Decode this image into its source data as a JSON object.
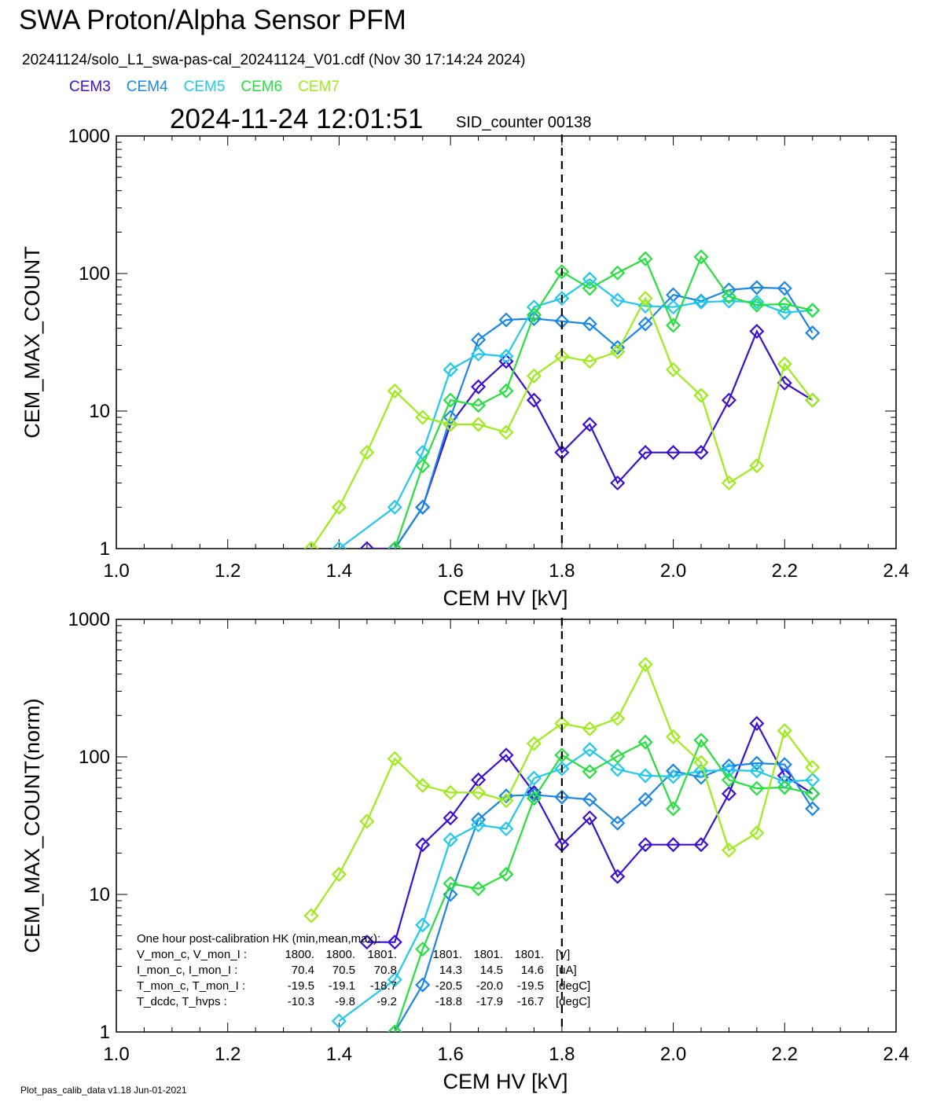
{
  "header": {
    "title": "SWA Proton/Alpha Sensor PFM",
    "subtitle": "20241124/solo_L1_swa-pas-cal_20241124_V01.cdf  (Nov 30 17:14:24 2024)",
    "datetime": "2024-11-24 12:01:51",
    "sid_counter": "SID_counter 00138"
  },
  "legend": [
    {
      "name": "CEM3",
      "color": "#3a10d4"
    },
    {
      "name": "CEM4",
      "color": "#1a86e6"
    },
    {
      "name": "CEM5",
      "color": "#20c8ee"
    },
    {
      "name": "CEM6",
      "color": "#24e03c"
    },
    {
      "name": "CEM7",
      "color": "#9cec18"
    }
  ],
  "footer": "Plot_pas_calib_data v1.18 Jun-01-2021",
  "reference_line": {
    "x": 1.8,
    "style": "dashed"
  },
  "hk_text": {
    "title": "One hour post-calibration HK (min,mean,max):",
    "lines": [
      {
        "label": "V_mon_c, V_mon_I :",
        "c": [
          "1800.",
          "1800.",
          "1801."
        ],
        "i": [
          "1801.",
          "1801.",
          "1801."
        ],
        "unit": "[V]"
      },
      {
        "label": "I_mon_c,  I_mon_I :",
        "c": [
          "70.4",
          "70.5",
          "70.8"
        ],
        "i": [
          "14.3",
          "14.5",
          "14.6"
        ],
        "unit": "[uA]"
      },
      {
        "label": "T_mon_c, T_mon_I :",
        "c": [
          "-19.5",
          "-19.1",
          "-18.7"
        ],
        "i": [
          "-20.5",
          "-20.0",
          "-19.5"
        ],
        "unit": "[degC]"
      },
      {
        "label": "T_dcdc,    T_hvps :",
        "c": [
          "-10.3",
          "-9.8",
          "-9.2"
        ],
        "i": [
          "-18.8",
          "-17.9",
          "-16.7"
        ],
        "unit": "[degC]"
      }
    ]
  },
  "chart_data": [
    {
      "type": "line",
      "xlabel": "CEM HV [kV]",
      "ylabel": "CEM_MAX_COUNT",
      "xlim": [
        1.0,
        2.4
      ],
      "ylim": [
        1,
        1000
      ],
      "yscale": "log",
      "xticks": [
        "1.0",
        "1.2",
        "1.4",
        "1.6",
        "1.8",
        "2.0",
        "2.2",
        "2.4"
      ],
      "yticks": [
        "1",
        "10",
        "100",
        "1000"
      ],
      "marker": "diamond",
      "x": [
        1.35,
        1.4,
        1.45,
        1.5,
        1.55,
        1.6,
        1.65,
        1.7,
        1.75,
        1.8,
        1.85,
        1.9,
        1.95,
        2.0,
        2.05,
        2.1,
        2.15,
        2.2,
        2.25
      ],
      "series": [
        {
          "name": "CEM3",
          "color": "#3a10d4",
          "values": [
            null,
            null,
            1,
            1,
            2,
            8,
            15,
            23,
            12,
            5,
            8,
            3,
            5,
            5,
            5,
            12,
            38,
            16,
            12
          ]
        },
        {
          "name": "CEM4",
          "color": "#1a86e6",
          "values": [
            null,
            null,
            null,
            1,
            2,
            9,
            33,
            46,
            47,
            45,
            43,
            29,
            43,
            70,
            63,
            76,
            79,
            78,
            37
          ]
        },
        {
          "name": "CEM5",
          "color": "#20c8ee",
          "values": [
            null,
            1,
            null,
            2,
            5,
            20,
            26,
            25,
            57,
            66,
            91,
            64,
            58,
            57,
            62,
            63,
            62,
            52,
            54
          ]
        },
        {
          "name": "CEM6",
          "color": "#24e03c",
          "values": [
            null,
            null,
            null,
            1,
            4,
            12,
            11,
            14,
            50,
            103,
            78,
            101,
            128,
            42,
            132,
            68,
            59,
            60,
            54
          ]
        },
        {
          "name": "CEM7",
          "color": "#9cec18",
          "values": [
            1,
            2,
            5,
            14,
            9,
            8,
            8,
            7,
            18,
            25,
            23,
            27,
            66,
            20,
            13,
            3,
            4,
            22,
            12
          ]
        }
      ]
    },
    {
      "type": "line",
      "xlabel": "CEM HV [kV]",
      "ylabel": "CEM_MAX_COUNT(norm)",
      "xlim": [
        1.0,
        2.4
      ],
      "ylim": [
        1,
        1000
      ],
      "yscale": "log",
      "xticks": [
        "1.0",
        "1.2",
        "1.4",
        "1.6",
        "1.8",
        "2.0",
        "2.2",
        "2.4"
      ],
      "yticks": [
        "1",
        "10",
        "100",
        "1000"
      ],
      "marker": "diamond",
      "x": [
        1.35,
        1.4,
        1.45,
        1.5,
        1.55,
        1.6,
        1.65,
        1.7,
        1.75,
        1.8,
        1.85,
        1.9,
        1.95,
        2.0,
        2.05,
        2.1,
        2.15,
        2.2,
        2.25
      ],
      "series": [
        {
          "name": "CEM3",
          "color": "#3a10d4",
          "values": [
            null,
            null,
            4.5,
            4.5,
            23,
            36,
            68,
            103,
            55,
            23,
            36,
            13.5,
            23,
            23,
            23,
            54,
            175,
            73,
            54
          ]
        },
        {
          "name": "CEM4",
          "color": "#1a86e6",
          "values": [
            null,
            null,
            null,
            1,
            2.2,
            10,
            35,
            52,
            53,
            51,
            49,
            33,
            49,
            79,
            71,
            86,
            90,
            88,
            42
          ]
        },
        {
          "name": "CEM5",
          "color": "#20c8ee",
          "values": [
            null,
            1.2,
            null,
            2.4,
            6,
            25,
            32,
            30,
            70,
            82,
            113,
            81,
            73,
            72,
            79,
            80,
            79,
            66,
            68
          ]
        },
        {
          "name": "CEM6",
          "color": "#24e03c",
          "values": [
            null,
            null,
            null,
            1,
            4,
            12,
            11,
            14,
            50,
            103,
            78,
            101,
            128,
            42,
            132,
            68,
            59,
            60,
            54
          ]
        },
        {
          "name": "CEM7",
          "color": "#9cec18",
          "values": [
            7,
            14,
            34,
            97,
            62,
            55,
            55,
            48,
            125,
            175,
            160,
            190,
            470,
            140,
            91,
            21,
            28,
            155,
            84
          ]
        }
      ]
    }
  ]
}
